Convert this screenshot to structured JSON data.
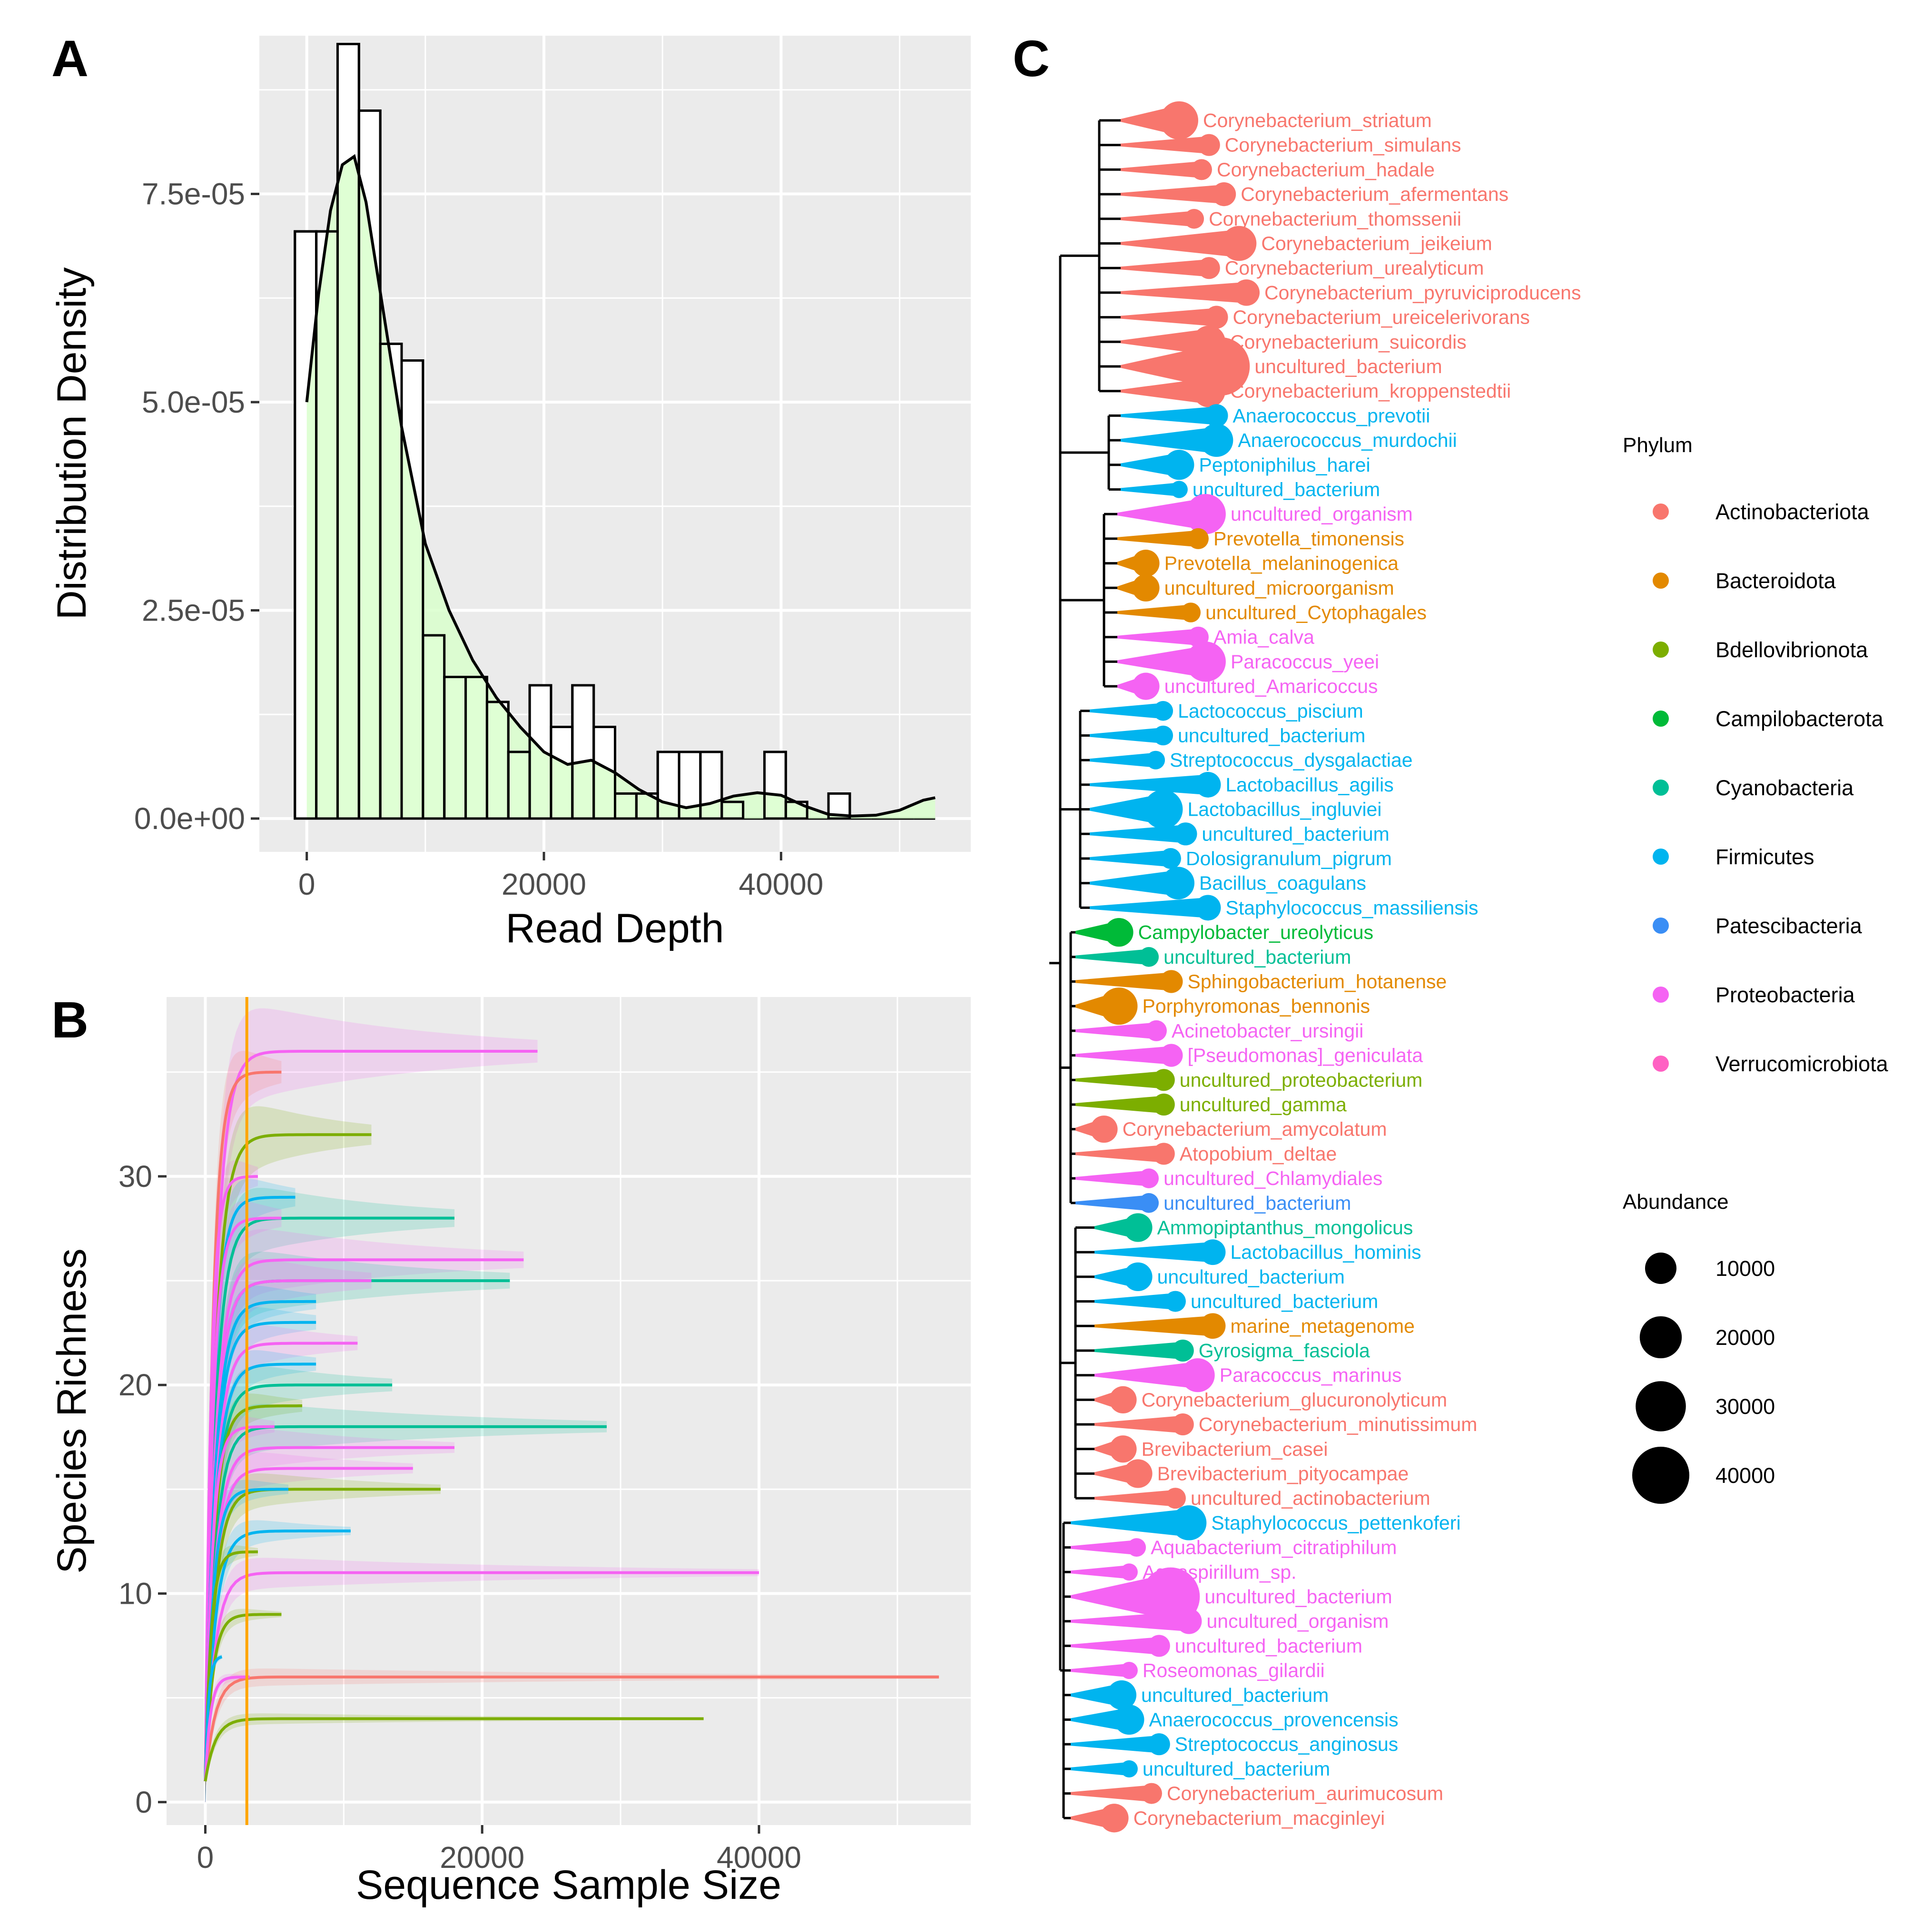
{
  "colors": {
    "Actinobacteriota": "#F8766D",
    "Bacteroidota": "#E38900",
    "Bdellovibrionota": "#7CAE00",
    "Campilobacterota": "#00BA38",
    "Cyanobacteria": "#00BF96",
    "Firmicutes": "#00B4EF",
    "Patescibacteria": "#3A8EF5",
    "Proteobacteria": "#F563F3",
    "Verrucomicrobiota": "#FF61C3",
    "panel_bg": "#EBEBEB",
    "grid": "#FFFFFF",
    "hist_fill": "#D9FFCC",
    "threshold": "#FFA500"
  },
  "chart_data": [
    {
      "panel": "A",
      "type": "bar",
      "subtype": "histogram_with_density",
      "xlabel": "Read Depth",
      "ylabel": "Distribution Density",
      "xlim": [
        -4000,
        56000
      ],
      "ylim": [
        -4e-06,
        9.4e-05
      ],
      "x_ticks": [
        0,
        20000,
        40000
      ],
      "x_tick_labels": [
        "0",
        "20000",
        "40000"
      ],
      "y_ticks": [
        0,
        2.5e-05,
        5e-05,
        7.5e-05
      ],
      "y_tick_labels": [
        "0.0e+00",
        "2.5e-05",
        "5.0e-05",
        "7.5e-05"
      ],
      "bin_width": 1800,
      "bin_start": -1000,
      "bin_densities": [
        7.05e-05,
        7.05e-05,
        9.3e-05,
        8.5e-05,
        5.7e-05,
        5.5e-05,
        2.2e-05,
        1.7e-05,
        1.7e-05,
        1.4e-05,
        8e-06,
        1.6e-05,
        1.1e-05,
        1.6e-05,
        1.1e-05,
        3e-06,
        3e-06,
        8e-06,
        8e-06,
        8e-06,
        2e-06,
        0.0,
        8e-06,
        2e-06,
        0.0,
        3e-06,
        0.0,
        0.0,
        0.0,
        0.0
      ],
      "density_x": [
        0,
        1000,
        2000,
        3000,
        4000,
        5000,
        6000,
        7000,
        8000,
        9000,
        10000,
        12000,
        14000,
        16000,
        18000,
        20000,
        22000,
        24000,
        26000,
        28000,
        30000,
        32000,
        34000,
        36000,
        38000,
        40000,
        42000,
        44000,
        46000,
        48000,
        50000,
        52000,
        53000
      ],
      "density_y": [
        5e-05,
        6.3e-05,
        7.3e-05,
        7.85e-05,
        7.95e-05,
        7.4e-05,
        6.5e-05,
        5.6e-05,
        4.7e-05,
        4e-05,
        3.3e-05,
        2.5e-05,
        1.9e-05,
        1.45e-05,
        1.1e-05,
        8e-06,
        6.5e-06,
        7e-06,
        5.5e-06,
        3.5e-06,
        2e-06,
        1.3e-06,
        1.8e-06,
        2.7e-06,
        3.1e-06,
        2.8e-06,
        1.5e-06,
        5e-07,
        3e-07,
        4e-07,
        1e-06,
        2.2e-06,
        2.5e-06
      ]
    },
    {
      "panel": "B",
      "type": "line",
      "subtype": "rarefaction",
      "xlabel": "Sequence Sample Size",
      "ylabel": "Species Richness",
      "xlim": [
        -2800,
        55300
      ],
      "ylim": [
        -1.1,
        38.6
      ],
      "x_ticks": [
        0,
        20000,
        40000
      ],
      "x_tick_labels": [
        "0",
        "20000",
        "40000"
      ],
      "y_ticks": [
        0,
        10,
        20,
        30
      ],
      "y_tick_labels": [
        "0",
        "10",
        "20",
        "30"
      ],
      "threshold_x": 3000,
      "series": [
        {
          "phylum": "Proteobacteria",
          "end_x": 24000,
          "plateau": 36
        },
        {
          "phylum": "Actinobacteriota",
          "end_x": 5500,
          "plateau": 35
        },
        {
          "phylum": "Bdellovibrionota",
          "end_x": 12000,
          "plateau": 32
        },
        {
          "phylum": "Proteobacteria",
          "end_x": 3800,
          "plateau": 30
        },
        {
          "phylum": "Firmicutes",
          "end_x": 6500,
          "plateau": 29
        },
        {
          "phylum": "Cyanobacteria",
          "end_x": 18000,
          "plateau": 28
        },
        {
          "phylum": "Proteobacteria",
          "end_x": 5500,
          "plateau": 28
        },
        {
          "phylum": "Proteobacteria",
          "end_x": 23000,
          "plateau": 26
        },
        {
          "phylum": "Cyanobacteria",
          "end_x": 22000,
          "plateau": 25
        },
        {
          "phylum": "Proteobacteria",
          "end_x": 12000,
          "plateau": 25
        },
        {
          "phylum": "Firmicutes",
          "end_x": 8000,
          "plateau": 24
        },
        {
          "phylum": "Firmicutes",
          "end_x": 8000,
          "plateau": 23
        },
        {
          "phylum": "Proteobacteria",
          "end_x": 11000,
          "plateau": 22
        },
        {
          "phylum": "Firmicutes",
          "end_x": 8000,
          "plateau": 21
        },
        {
          "phylum": "Cyanobacteria",
          "end_x": 13500,
          "plateau": 20
        },
        {
          "phylum": "Bdellovibrionota",
          "end_x": 7000,
          "plateau": 19
        },
        {
          "phylum": "Cyanobacteria",
          "end_x": 29000,
          "plateau": 18
        },
        {
          "phylum": "Proteobacteria",
          "end_x": 5000,
          "plateau": 18
        },
        {
          "phylum": "Proteobacteria",
          "end_x": 18000,
          "plateau": 17
        },
        {
          "phylum": "Proteobacteria",
          "end_x": 15000,
          "plateau": 16
        },
        {
          "phylum": "Bdellovibrionota",
          "end_x": 17000,
          "plateau": 15
        },
        {
          "phylum": "Firmicutes",
          "end_x": 6000,
          "plateau": 15
        },
        {
          "phylum": "Firmicutes",
          "end_x": 10500,
          "plateau": 13
        },
        {
          "phylum": "Bdellovibrionota",
          "end_x": 3800,
          "plateau": 12
        },
        {
          "phylum": "Proteobacteria",
          "end_x": 40000,
          "plateau": 11
        },
        {
          "phylum": "Bdellovibrionota",
          "end_x": 5500,
          "plateau": 9
        },
        {
          "phylum": "Firmicutes",
          "end_x": 1200,
          "plateau": 7
        },
        {
          "phylum": "Actinobacteriota",
          "end_x": 53000,
          "plateau": 6
        },
        {
          "phylum": "Proteobacteria",
          "end_x": 3200,
          "plateau": 6
        },
        {
          "phylum": "Bdellovibrionota",
          "end_x": 36000,
          "plateau": 4
        }
      ]
    },
    {
      "panel": "C",
      "type": "tree",
      "subtype": "phylogenetic_tree_with_abundance",
      "legend_phylum_title": "Phylum",
      "legend_phylum": [
        "Actinobacteriota",
        "Bacteroidota",
        "Bdellovibrionota",
        "Campilobacterota",
        "Cyanobacteria",
        "Firmicutes",
        "Patescibacteria",
        "Proteobacteria",
        "Verrucomicrobiota"
      ],
      "legend_abundance_title": "Abundance",
      "legend_abundance_values": [
        10000,
        20000,
        30000,
        40000
      ],
      "legend_abundance_labels": [
        "10000",
        "20000",
        "30000",
        "40000"
      ],
      "tips": [
        {
          "label": "Corynebacterium_striatum",
          "phylum": "Actinobacteriota",
          "abundance": 16000
        },
        {
          "label": "Corynebacterium_simulans",
          "phylum": "Actinobacteriota",
          "abundance": 4000
        },
        {
          "label": "Corynebacterium_hadale",
          "phylum": "Actinobacteriota",
          "abundance": 3500
        },
        {
          "label": "Corynebacterium_afermentans",
          "phylum": "Actinobacteriota",
          "abundance": 5000
        },
        {
          "label": "Corynebacterium_thomssenii",
          "phylum": "Actinobacteriota",
          "abundance": 3000
        },
        {
          "label": "Corynebacterium_jeikeium",
          "phylum": "Actinobacteriota",
          "abundance": 13000
        },
        {
          "label": "Corynebacterium_urealyticum",
          "phylum": "Actinobacteriota",
          "abundance": 4000
        },
        {
          "label": "Corynebacterium_pyruviciproducens",
          "phylum": "Actinobacteriota",
          "abundance": 6500
        },
        {
          "label": "Corynebacterium_ureicelerivorans",
          "phylum": "Actinobacteriota",
          "abundance": 4500
        },
        {
          "label": "Corynebacterium_suicordis",
          "phylum": "Actinobacteriota",
          "abundance": 11000
        },
        {
          "label": "uncultured_bacterium",
          "phylum": "Actinobacteriota",
          "abundance": 42000
        },
        {
          "label": "Corynebacterium_kroppenstedtii",
          "phylum": "Actinobacteriota",
          "abundance": 11000
        },
        {
          "label": "Anaerococcus_prevotii",
          "phylum": "Firmicutes",
          "abundance": 4500
        },
        {
          "label": "Anaerococcus_murdochii",
          "phylum": "Firmicutes",
          "abundance": 11500
        },
        {
          "label": "Peptoniphilus_harei",
          "phylum": "Firmicutes",
          "abundance": 9000
        },
        {
          "label": "uncultured_bacterium",
          "phylum": "Firmicutes",
          "abundance": 2000
        },
        {
          "label": "uncultured_organism",
          "phylum": "Proteobacteria",
          "abundance": 18000
        },
        {
          "label": "Prevotella_timonensis",
          "phylum": "Bacteroidota",
          "abundance": 3500
        },
        {
          "label": "Prevotella_melaninogenica",
          "phylum": "Bacteroidota",
          "abundance": 7000
        },
        {
          "label": "uncultured_microorganism",
          "phylum": "Bacteroidota",
          "abundance": 7000
        },
        {
          "label": "uncultured_Cytophagales",
          "phylum": "Bacteroidota",
          "abundance": 3000
        },
        {
          "label": "Amia_calva",
          "phylum": "Proteobacteria",
          "abundance": 3500
        },
        {
          "label": "Paracoccus_yeei",
          "phylum": "Proteobacteria",
          "abundance": 18000
        },
        {
          "label": "uncultured_Amaricoccus",
          "phylum": "Proteobacteria",
          "abundance": 7000
        },
        {
          "label": "Lactococcus_piscium",
          "phylum": "Firmicutes",
          "abundance": 3000
        },
        {
          "label": "uncultured_bacterium",
          "phylum": "Firmicutes",
          "abundance": 3000
        },
        {
          "label": "Streptococcus_dysgalactiae",
          "phylum": "Firmicutes",
          "abundance": 2500
        },
        {
          "label": "Lactobacillus_agilis",
          "phylum": "Firmicutes",
          "abundance": 6000
        },
        {
          "label": "Lactobacillus_ingluviei",
          "phylum": "Firmicutes",
          "abundance": 17000
        },
        {
          "label": "uncultured_bacterium",
          "phylum": "Firmicutes",
          "abundance": 4500
        },
        {
          "label": "Dolosigranulum_pigrum",
          "phylum": "Firmicutes",
          "abundance": 3500
        },
        {
          "label": "Bacillus_coagulans",
          "phylum": "Firmicutes",
          "abundance": 11000
        },
        {
          "label": "Staphylococcus_massiliensis",
          "phylum": "Firmicutes",
          "abundance": 6000
        },
        {
          "label": "Campylobacter_ureolyticus",
          "phylum": "Campilobacterota",
          "abundance": 8000
        },
        {
          "label": "uncultured_bacterium",
          "phylum": "Cyanobacteria",
          "abundance": 3000
        },
        {
          "label": "Sphingobacterium_hotanense",
          "phylum": "Bacteroidota",
          "abundance": 4500
        },
        {
          "label": "Porphyromonas_bennonis",
          "phylum": "Bacteroidota",
          "abundance": 15000
        },
        {
          "label": "Acinetobacter_ursingii",
          "phylum": "Proteobacteria",
          "abundance": 3500
        },
        {
          "label": "[Pseudomonas]_geniculata",
          "phylum": "Proteobacteria",
          "abundance": 4500
        },
        {
          "label": "uncultured_proteobacterium",
          "phylum": "Bdellovibrionota",
          "abundance": 4000
        },
        {
          "label": "uncultured_gamma",
          "phylum": "Bdellovibrionota",
          "abundance": 4000
        },
        {
          "label": "Corynebacterium_amycolatum",
          "phylum": "Actinobacteriota",
          "abundance": 7000
        },
        {
          "label": "Atopobium_deltae",
          "phylum": "Actinobacteriota",
          "abundance": 4000
        },
        {
          "label": "uncultured_Chlamydiales",
          "phylum": "Proteobacteria",
          "abundance": 3000
        },
        {
          "label": "uncultured_bacterium",
          "phylum": "Patescibacteria",
          "abundance": 3000
        },
        {
          "label": "Ammopiptanthus_mongolicus",
          "phylum": "Cyanobacteria",
          "abundance": 8000
        },
        {
          "label": "Lactobacillus_hominis",
          "phylum": "Firmicutes",
          "abundance": 6000
        },
        {
          "label": "uncultured_bacterium",
          "phylum": "Firmicutes",
          "abundance": 8000
        },
        {
          "label": "uncultured_bacterium",
          "phylum": "Firmicutes",
          "abundance": 3500
        },
        {
          "label": "marine_metagenome",
          "phylum": "Bacteroidota",
          "abundance": 6000
        },
        {
          "label": "Gyrosigma_fasciola",
          "phylum": "Cyanobacteria",
          "abundance": 4000
        },
        {
          "label": "Paracoccus_marinus",
          "phylum": "Proteobacteria",
          "abundance": 12000
        },
        {
          "label": "Corynebacterium_glucuronolyticum",
          "phylum": "Actinobacteriota",
          "abundance": 7000
        },
        {
          "label": "Corynebacterium_minutissimum",
          "phylum": "Actinobacteriota",
          "abundance": 4000
        },
        {
          "label": "Brevibacterium_casei",
          "phylum": "Actinobacteriota",
          "abundance": 7000
        },
        {
          "label": "Brevibacterium_pityocampae",
          "phylum": "Actinobacteriota",
          "abundance": 8000
        },
        {
          "label": "uncultured_actinobacterium",
          "phylum": "Actinobacteriota",
          "abundance": 3500
        },
        {
          "label": "Staphylococcus_pettenkoferi",
          "phylum": "Firmicutes",
          "abundance": 13000
        },
        {
          "label": "Aquabacterium_citratiphilum",
          "phylum": "Proteobacteria",
          "abundance": 2500
        },
        {
          "label": "Aquaspirillum_sp.",
          "phylum": "Proteobacteria",
          "abundance": 2000
        },
        {
          "label": "uncultured_bacterium",
          "phylum": "Proteobacteria",
          "abundance": 42000
        },
        {
          "label": "uncultured_organism",
          "phylum": "Proteobacteria",
          "abundance": 6000
        },
        {
          "label": "uncultured_bacterium",
          "phylum": "Proteobacteria",
          "abundance": 4000
        },
        {
          "label": "Roseomonas_gilardii",
          "phylum": "Proteobacteria",
          "abundance": 2000
        },
        {
          "label": "uncultured_bacterium",
          "phylum": "Firmicutes",
          "abundance": 8500
        },
        {
          "label": "Anaerococcus_provencensis",
          "phylum": "Firmicutes",
          "abundance": 9000
        },
        {
          "label": "Streptococcus_anginosus",
          "phylum": "Firmicutes",
          "abundance": 4000
        },
        {
          "label": "uncultured_bacterium",
          "phylum": "Firmicutes",
          "abundance": 2000
        },
        {
          "label": "Corynebacterium_aurimucosum",
          "phylum": "Actinobacteriota",
          "abundance": 3500
        },
        {
          "label": "Corynebacterium_macginleyi",
          "phylum": "Actinobacteriota",
          "abundance": 8000
        }
      ]
    }
  ],
  "panels": {
    "A": {
      "letter": "A"
    },
    "B": {
      "letter": "B"
    },
    "C": {
      "letter": "C"
    }
  }
}
